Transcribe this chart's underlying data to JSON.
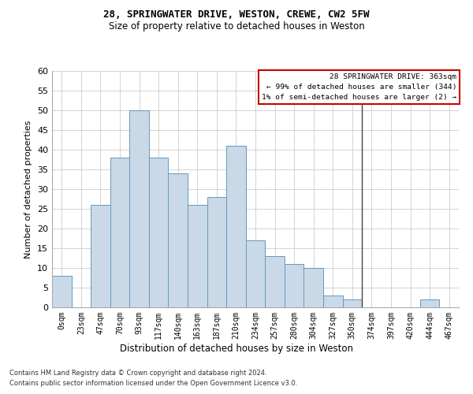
{
  "title1": "28, SPRINGWATER DRIVE, WESTON, CREWE, CW2 5FW",
  "title2": "Size of property relative to detached houses in Weston",
  "xlabel": "Distribution of detached houses by size in Weston",
  "ylabel": "Number of detached properties",
  "footer1": "Contains HM Land Registry data © Crown copyright and database right 2024.",
  "footer2": "Contains public sector information licensed under the Open Government Licence v3.0.",
  "bar_labels": [
    "0sqm",
    "23sqm",
    "47sqm",
    "70sqm",
    "93sqm",
    "117sqm",
    "140sqm",
    "163sqm",
    "187sqm",
    "210sqm",
    "234sqm",
    "257sqm",
    "280sqm",
    "304sqm",
    "327sqm",
    "350sqm",
    "374sqm",
    "397sqm",
    "420sqm",
    "444sqm",
    "467sqm"
  ],
  "bar_values": [
    8,
    0,
    26,
    38,
    50,
    38,
    34,
    26,
    28,
    41,
    17,
    13,
    11,
    10,
    3,
    2,
    0,
    0,
    0,
    2,
    0
  ],
  "bar_color": "#c9d9e8",
  "bar_edge_color": "#6699bb",
  "annotation_title": "28 SPRINGWATER DRIVE: 363sqm",
  "annotation_line1": "← 99% of detached houses are smaller (344)",
  "annotation_line2": "1% of semi-detached houses are larger (2) →",
  "annotation_box_color": "#ffffff",
  "annotation_box_edge_color": "#cc0000",
  "vline_color": "#444444",
  "vline_x_index": 15.5,
  "ylim": [
    0,
    60
  ],
  "yticks": [
    0,
    5,
    10,
    15,
    20,
    25,
    30,
    35,
    40,
    45,
    50,
    55,
    60
  ],
  "background_color": "#ffffff",
  "grid_color": "#cccccc",
  "title1_fontsize": 9,
  "title2_fontsize": 8.5,
  "ylabel_fontsize": 8,
  "xlabel_fontsize": 8.5,
  "tick_fontsize": 7,
  "footer_fontsize": 6
}
